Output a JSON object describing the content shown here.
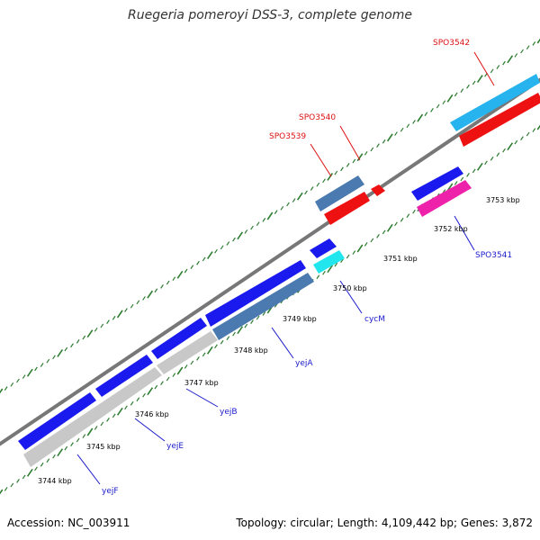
{
  "title": "Ruegeria pomeroyi DSS-3, complete genome",
  "accession_text": "Accession: NC_003911",
  "summary_text": "Topology: circular; Length: 4,109,442 bp; Genes: 3,872",
  "colors": {
    "backbone": "#777777",
    "tick": "#2e7d32",
    "blue": "#1a1aee",
    "steelblue": "#4b7ab0",
    "silver": "#c8c8c8",
    "red": "#ee1111",
    "cyan": "#22e6ee",
    "skyblue": "#27b4ee",
    "magenta": "#ee22aa",
    "label_blue": "#1a1acc",
    "label_red": "#dd1111"
  },
  "ticks": [
    "3744 kbp",
    "3745 kbp",
    "3746 kbp",
    "3747 kbp",
    "3748 kbp",
    "3749 kbp",
    "3750 kbp",
    "3751 kbp",
    "3752 kbp",
    "3753 kbp"
  ],
  "genes": [
    {
      "label": "yejF",
      "color": "blue"
    },
    {
      "label": "yejE",
      "color": "silver"
    },
    {
      "label": "yejB",
      "color": "silver"
    },
    {
      "label": "yejA",
      "color": "steelblue"
    },
    {
      "label": "cycM",
      "color": "cyan"
    },
    {
      "label": "SPO3539",
      "color": "red"
    },
    {
      "label": "SPO3540",
      "color": "red"
    },
    {
      "label": "SPO3541",
      "color": "magenta"
    },
    {
      "label": "SPO3542",
      "color": "red"
    }
  ]
}
